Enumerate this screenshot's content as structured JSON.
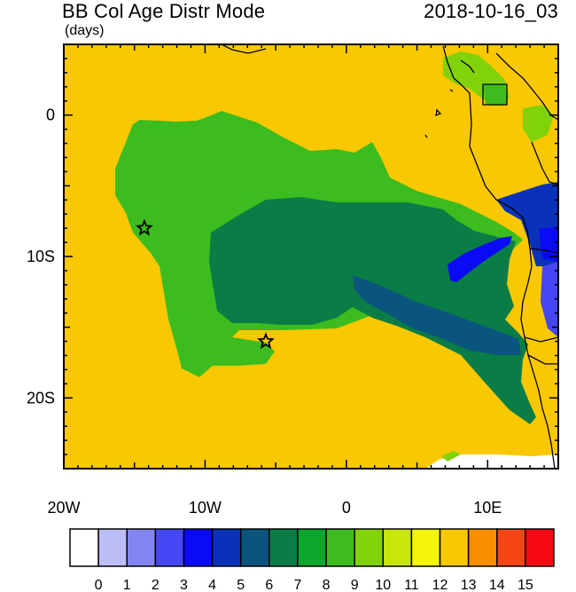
{
  "header": {
    "title": "BB Col Age Distr Mode",
    "units": "(days)",
    "datetime": "2018-10-16_03"
  },
  "map": {
    "x_ticks": [
      {
        "value": -20,
        "label": "20W"
      },
      {
        "value": -10,
        "label": "10W"
      },
      {
        "value": 0,
        "label": "0"
      },
      {
        "value": 10,
        "label": "10E"
      }
    ],
    "y_ticks": [
      {
        "value": 0,
        "label": "0"
      },
      {
        "value": -10,
        "label": "10S"
      },
      {
        "value": -20,
        "label": "20S"
      }
    ],
    "lon_range": [
      -20,
      15
    ],
    "lat_range": [
      -25,
      5
    ],
    "markers": [
      {
        "name": "star-marker-west",
        "lon": -14.3,
        "lat": -8.0
      },
      {
        "name": "star-marker-south",
        "lon": -5.7,
        "lat": -16.0
      }
    ]
  },
  "colorbar": {
    "labels": [
      "0",
      "1",
      "2",
      "3",
      "4",
      "5",
      "6",
      "7",
      "8",
      "9",
      "10",
      "11",
      "12",
      "13",
      "14",
      "15"
    ],
    "colors": [
      "#ffffff",
      "#bdbdf5",
      "#8383f2",
      "#4646f5",
      "#0a0af5",
      "#0a32b8",
      "#0a557d",
      "#0a7d46",
      "#0aa62d",
      "#3cbc1e",
      "#82d20a",
      "#c8e60a",
      "#f5f50a",
      "#fac800",
      "#fa8c00",
      "#f54614",
      "#f50a14"
    ]
  }
}
